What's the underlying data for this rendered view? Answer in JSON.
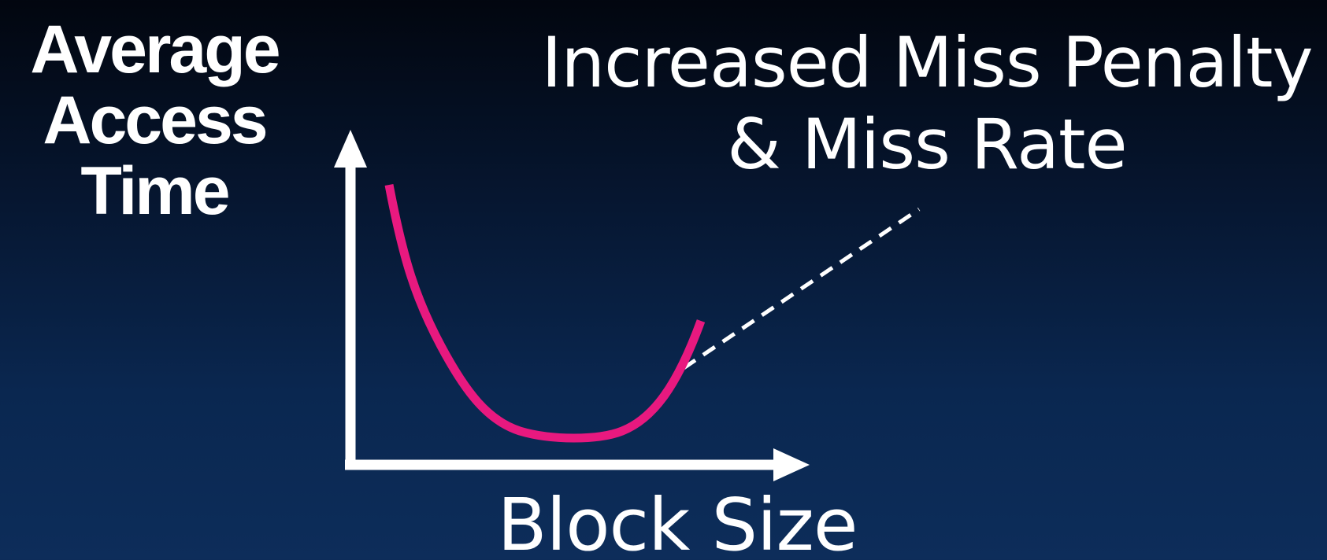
{
  "slide": {
    "y_axis_label": [
      "Average",
      "Access",
      "Time"
    ],
    "annotation": [
      "Increased Miss Penalty",
      "& Miss Rate"
    ],
    "x_axis_label": "Block Size"
  },
  "colors": {
    "background_top": "#02060f",
    "background_bottom": "#0d2d5a",
    "curve": "#e8197f",
    "axes": "#ffffff",
    "leader_line": "#ffffff"
  },
  "diagram": {
    "curve_shape": "U-shaped",
    "axes": "x and y arrows",
    "leader_line_style": "dashed"
  }
}
